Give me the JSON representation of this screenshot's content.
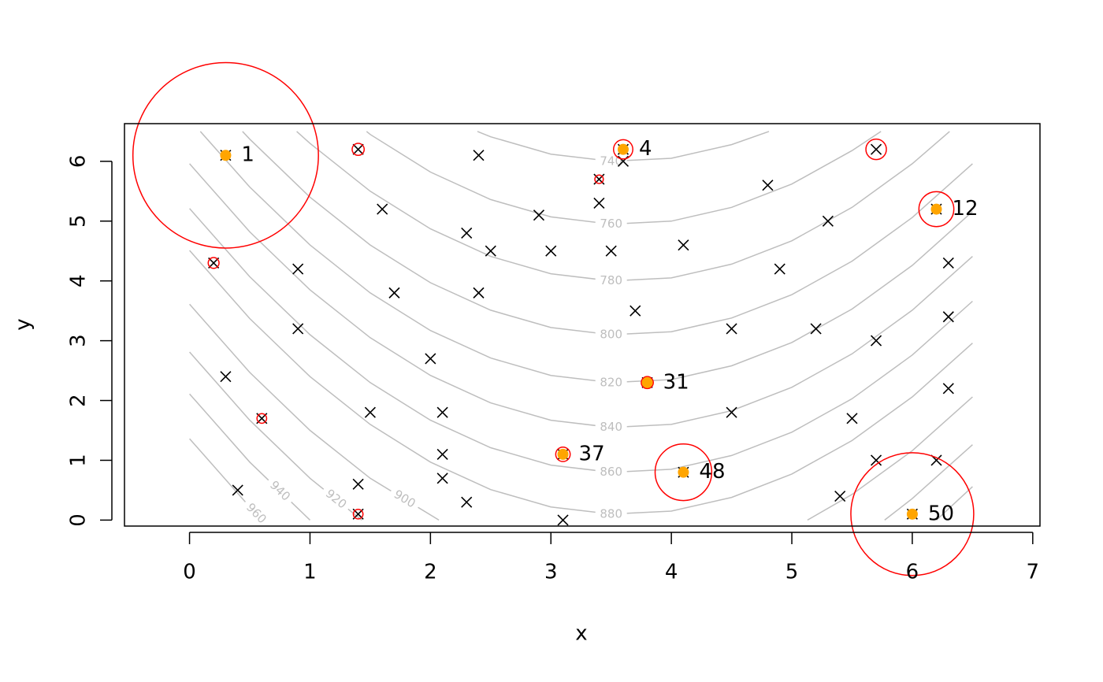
{
  "chart_data": {
    "type": "scatter",
    "xlabel": "x",
    "ylabel": "y",
    "xlim": [
      -0.54,
      7.06
    ],
    "ylim": [
      -0.1,
      6.63
    ],
    "xticks": [
      0,
      1,
      2,
      3,
      4,
      5,
      6,
      7
    ],
    "yticks": [
      0,
      1,
      2,
      3,
      4,
      5,
      6
    ],
    "points": {
      "color": "#000000",
      "x": [
        0.3,
        1.4,
        2.4,
        3.6,
        3.6,
        3.4,
        3.4,
        2.9,
        1.6,
        2.3,
        2.5,
        3.0,
        3.5,
        4.1,
        4.8,
        5.3,
        5.7,
        6.2,
        6.3,
        4.9,
        0.2,
        0.9,
        1.7,
        2.4,
        3.7,
        0.9,
        4.5,
        5.2,
        5.7,
        6.3,
        2.0,
        0.3,
        3.8,
        6.3,
        0.6,
        1.5,
        2.1,
        4.5,
        5.5,
        3.1,
        2.1,
        5.7,
        6.2,
        4.1,
        1.4,
        2.1,
        0.4,
        2.3,
        5.4,
        1.4,
        3.1,
        6.0
      ],
      "y": [
        6.1,
        6.2,
        6.1,
        6.2,
        6.0,
        5.7,
        5.3,
        5.1,
        5.2,
        4.8,
        4.5,
        4.5,
        4.5,
        4.6,
        5.6,
        5.0,
        6.2,
        5.2,
        4.3,
        4.2,
        4.3,
        4.2,
        3.8,
        3.8,
        3.5,
        3.2,
        3.2,
        3.2,
        3.0,
        3.4,
        2.7,
        2.4,
        2.3,
        2.2,
        1.7,
        1.8,
        1.8,
        1.8,
        1.7,
        1.1,
        1.1,
        1.0,
        1.0,
        0.8,
        0.6,
        0.7,
        0.5,
        0.3,
        0.4,
        0.1,
        0.0,
        0.1
      ]
    },
    "circles": {
      "color": "#ff0000",
      "x": [
        0.3,
        1.4,
        3.6,
        3.4,
        5.7,
        6.2,
        0.2,
        3.8,
        0.6,
        3.1,
        4.1,
        6.0,
        1.4
      ],
      "y": [
        6.1,
        6.2,
        6.2,
        5.7,
        6.2,
        5.2,
        4.3,
        2.3,
        1.7,
        1.1,
        0.8,
        0.1,
        0.1
      ],
      "r": [
        0.77,
        0.05,
        0.08,
        0.035,
        0.085,
        0.145,
        0.045,
        0.05,
        0.04,
        0.06,
        0.235,
        0.51,
        0.04
      ]
    },
    "labeled_points": {
      "color": "#ffa500",
      "x": [
        0.3,
        3.6,
        6.2,
        3.8,
        3.1,
        4.1,
        6.0
      ],
      "y": [
        6.1,
        6.2,
        5.2,
        2.3,
        1.1,
        0.8,
        0.1
      ],
      "labels": [
        1,
        4,
        12,
        31,
        37,
        48,
        50
      ]
    },
    "contour_color": "#bebebe",
    "contours": [
      {
        "level": 740,
        "x": [
          2.39,
          2.5,
          3.0,
          3.5,
          4.0,
          4.5,
          4.81
        ],
        "y": [
          6.5,
          6.41,
          6.12,
          6.0,
          6.05,
          6.28,
          6.5
        ]
      },
      {
        "level": 760,
        "x": [
          1.47,
          1.5,
          2.0,
          2.5,
          3.0,
          3.5,
          4.0,
          4.5,
          5.0,
          5.5,
          5.74
        ],
        "y": [
          6.5,
          6.45,
          5.82,
          5.36,
          5.07,
          4.95,
          5.0,
          5.23,
          5.62,
          6.18,
          6.5
        ]
      },
      {
        "level": 780,
        "x": [
          0.89,
          1.0,
          1.5,
          2.0,
          2.5,
          3.0,
          3.5,
          4.0,
          4.5,
          5.0,
          5.5,
          6.0,
          6.31
        ],
        "y": [
          6.5,
          6.3,
          5.5,
          4.87,
          4.41,
          4.12,
          4.0,
          4.05,
          4.28,
          4.67,
          5.23,
          5.96,
          6.5
        ]
      },
      {
        "level": 800,
        "x": [
          0.44,
          0.5,
          1.0,
          1.5,
          2.0,
          2.5,
          3.0,
          3.5,
          4.0,
          4.5,
          5.0,
          5.5,
          6.0,
          6.5
        ],
        "y": [
          6.5,
          6.37,
          5.4,
          4.6,
          3.97,
          3.51,
          3.22,
          3.1,
          3.15,
          3.38,
          3.77,
          4.33,
          5.06,
          5.96
        ]
      },
      {
        "level": 820,
        "x": [
          0.09,
          0.5,
          1.0,
          1.5,
          2.0,
          2.5,
          3.0,
          3.5,
          4.0,
          4.5,
          5.0,
          5.5,
          6.0,
          6.5
        ],
        "y": [
          6.5,
          5.57,
          4.6,
          3.8,
          3.17,
          2.71,
          2.42,
          2.3,
          2.35,
          2.58,
          2.97,
          3.53,
          4.26,
          5.16
        ]
      },
      {
        "level": 840,
        "x": [
          0,
          0.5,
          1.0,
          1.5,
          2.0,
          2.5,
          3.0,
          3.5,
          4.0,
          4.5,
          5.0,
          5.5,
          6.0,
          6.5
        ],
        "y": [
          5.96,
          4.82,
          3.85,
          3.05,
          2.42,
          1.96,
          1.67,
          1.55,
          1.6,
          1.83,
          2.22,
          2.78,
          3.51,
          4.41
        ]
      },
      {
        "level": 860,
        "x": [
          0,
          0.5,
          1.0,
          1.5,
          2.0,
          2.5,
          3.0,
          3.5,
          4.0,
          4.5,
          5.0,
          5.5,
          6.0,
          6.5
        ],
        "y": [
          5.21,
          4.07,
          3.1,
          2.3,
          1.67,
          1.21,
          0.92,
          0.8,
          0.85,
          1.08,
          1.47,
          2.03,
          2.76,
          3.66
        ]
      },
      {
        "level": 880,
        "x": [
          0,
          0.5,
          1.0,
          1.5,
          2.0,
          2.5,
          3.0,
          3.5,
          4.0,
          4.5,
          5.0,
          5.5,
          6.0,
          6.5
        ],
        "y": [
          4.51,
          3.37,
          2.4,
          1.6,
          0.97,
          0.51,
          0.22,
          0.1,
          0.15,
          0.38,
          0.77,
          1.33,
          2.06,
          2.96
        ]
      },
      {
        "level": 900,
        "x": [
          0,
          0.5,
          1.0,
          1.5,
          2.07,
          null,
          5.13,
          5.5,
          6.0,
          6.5
        ],
        "y": [
          3.61,
          2.47,
          1.5,
          0.7,
          0,
          null,
          0,
          0.43,
          1.16,
          2.06
        ]
      },
      {
        "level": 920,
        "x": [
          0,
          0.5,
          1.0,
          1.43,
          null,
          5.77,
          6.0,
          6.5
        ],
        "y": [
          2.81,
          1.67,
          0.7,
          0,
          null,
          0,
          0.36,
          1.26
        ]
      },
      {
        "level": 940,
        "x": [
          0,
          0.5,
          1.0,
          null,
          6.2,
          6.5
        ],
        "y": [
          2.11,
          0.97,
          0,
          null,
          0,
          0.56
        ]
      },
      {
        "level": 960,
        "x": [
          0,
          0.5,
          0.605
        ],
        "y": [
          1.36,
          0.22,
          0
        ]
      }
    ]
  }
}
